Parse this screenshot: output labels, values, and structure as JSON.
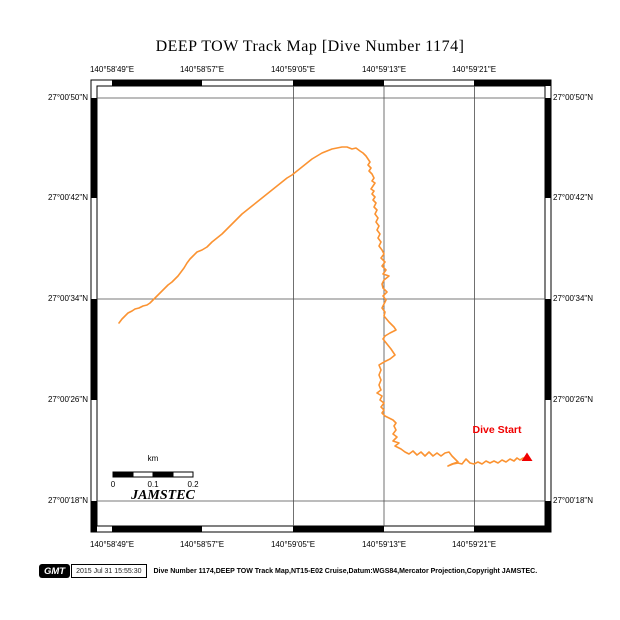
{
  "title": "DEEP TOW Track Map [Dive Number 1174]",
  "axes": {
    "lon_labels": [
      "140°58'49\"E",
      "140°58'57\"E",
      "140°59'05\"E",
      "140°59'13\"E",
      "140°59'21\"E"
    ],
    "lat_labels": [
      "27°00'50\"N",
      "27°00'42\"N",
      "27°00'34\"N",
      "27°00'26\"N",
      "27°00'18\"N"
    ]
  },
  "annotations": {
    "dive_start": "Dive Start",
    "watermark": "JAMSTEC"
  },
  "scalebar": {
    "unit": "km",
    "ticks": [
      "0",
      "0.1",
      "0.2"
    ]
  },
  "footer": {
    "logo": "GMT",
    "timestamp": "2015 Jul 31 15:55:30",
    "caption": "Dive Number 1174,DEEP TOW Track Map,NT15-E02 Cruise,Datum:WGS84,Mercator Projection,Copyright JAMSTEC."
  },
  "colors": {
    "track": "#FB9332",
    "start_marker": "#F00000",
    "grid": "#4D4D4D"
  },
  "track": {
    "points": [
      [
        119,
        323
      ],
      [
        122,
        319
      ],
      [
        125,
        316
      ],
      [
        128,
        313
      ],
      [
        132,
        311
      ],
      [
        135,
        309
      ],
      [
        139,
        308
      ],
      [
        143,
        306
      ],
      [
        147,
        305
      ],
      [
        150,
        303
      ],
      [
        153,
        300
      ],
      [
        156,
        297
      ],
      [
        159,
        294
      ],
      [
        162,
        291
      ],
      [
        165,
        288
      ],
      [
        168,
        285
      ],
      [
        172,
        282
      ],
      [
        175,
        279
      ],
      [
        178,
        276
      ],
      [
        181,
        272
      ],
      [
        184,
        268
      ],
      [
        187,
        263
      ],
      [
        190,
        259
      ],
      [
        193,
        256
      ],
      [
        197,
        252
      ],
      [
        202,
        250
      ],
      [
        207,
        247
      ],
      [
        212,
        242
      ],
      [
        217,
        238
      ],
      [
        222,
        234
      ],
      [
        227,
        229
      ],
      [
        232,
        224
      ],
      [
        237,
        219
      ],
      [
        242,
        214
      ],
      [
        247,
        210
      ],
      [
        252,
        206
      ],
      [
        257,
        202
      ],
      [
        262,
        198
      ],
      [
        267,
        194
      ],
      [
        272,
        190
      ],
      [
        277,
        186
      ],
      [
        282,
        182
      ],
      [
        287,
        178
      ],
      [
        292,
        175
      ],
      [
        297,
        171
      ],
      [
        302,
        167
      ],
      [
        307,
        163
      ],
      [
        312,
        159
      ],
      [
        317,
        156
      ],
      [
        322,
        153
      ],
      [
        327,
        151
      ],
      [
        332,
        149
      ],
      [
        337,
        148
      ],
      [
        342,
        147
      ],
      [
        347,
        147
      ],
      [
        352,
        149
      ],
      [
        356,
        148
      ],
      [
        360,
        151
      ],
      [
        363,
        153
      ],
      [
        366,
        156
      ],
      [
        368,
        159
      ],
      [
        370,
        162
      ],
      [
        368,
        165
      ],
      [
        371,
        168
      ],
      [
        369,
        171
      ],
      [
        372,
        174
      ],
      [
        374,
        178
      ],
      [
        372,
        181
      ],
      [
        375,
        183
      ],
      [
        373,
        186
      ],
      [
        371,
        189
      ],
      [
        374,
        191
      ],
      [
        372,
        194
      ],
      [
        375,
        197
      ],
      [
        373,
        200
      ],
      [
        376,
        203
      ],
      [
        374,
        207
      ],
      [
        377,
        210
      ],
      [
        375,
        214
      ],
      [
        378,
        218
      ],
      [
        376,
        222
      ],
      [
        379,
        226
      ],
      [
        377,
        230
      ],
      [
        380,
        234
      ],
      [
        378,
        238
      ],
      [
        381,
        242
      ],
      [
        379,
        246
      ],
      [
        382,
        250
      ],
      [
        384,
        254
      ],
      [
        381,
        258
      ],
      [
        385,
        262
      ],
      [
        382,
        266
      ],
      [
        386,
        270
      ],
      [
        383,
        274
      ],
      [
        389,
        276
      ],
      [
        384,
        280
      ],
      [
        382,
        284
      ],
      [
        383,
        288
      ],
      [
        387,
        292
      ],
      [
        383,
        296
      ],
      [
        386,
        300
      ],
      [
        384,
        304
      ],
      [
        382,
        308
      ],
      [
        385,
        312
      ],
      [
        384,
        316
      ],
      [
        389,
        322
      ],
      [
        394,
        327
      ],
      [
        396,
        330
      ],
      [
        390,
        333
      ],
      [
        385,
        336
      ],
      [
        383,
        339
      ],
      [
        387,
        344
      ],
      [
        391,
        349
      ],
      [
        395,
        355
      ],
      [
        390,
        359
      ],
      [
        384,
        362
      ],
      [
        379,
        365
      ],
      [
        381,
        370
      ],
      [
        379,
        375
      ],
      [
        381,
        380
      ],
      [
        379,
        385
      ],
      [
        381,
        390
      ],
      [
        377,
        393
      ],
      [
        382,
        396
      ],
      [
        380,
        400
      ],
      [
        384,
        403
      ],
      [
        381,
        407
      ],
      [
        384,
        410
      ],
      [
        382,
        413
      ],
      [
        385,
        416
      ],
      [
        389,
        418
      ],
      [
        393,
        420
      ],
      [
        396,
        423
      ],
      [
        394,
        426
      ],
      [
        396,
        430
      ],
      [
        393,
        434
      ],
      [
        397,
        437
      ],
      [
        393,
        441
      ],
      [
        399,
        443
      ],
      [
        395,
        446
      ],
      [
        401,
        449
      ],
      [
        405,
        452
      ],
      [
        409,
        454
      ],
      [
        413,
        451
      ],
      [
        417,
        455
      ],
      [
        421,
        452
      ],
      [
        425,
        456
      ],
      [
        429,
        452
      ],
      [
        433,
        456
      ],
      [
        437,
        453
      ],
      [
        441,
        456
      ],
      [
        445,
        453
      ],
      [
        449,
        452
      ],
      [
        452,
        456
      ],
      [
        455,
        459
      ],
      [
        458,
        462
      ],
      [
        452,
        464
      ],
      [
        448,
        466
      ],
      [
        453,
        464
      ],
      [
        458,
        463
      ],
      [
        462,
        464
      ],
      [
        466,
        459
      ],
      [
        470,
        463
      ],
      [
        474,
        464
      ],
      [
        478,
        462
      ],
      [
        482,
        464
      ],
      [
        486,
        461
      ],
      [
        490,
        463
      ],
      [
        494,
        461
      ],
      [
        498,
        463
      ],
      [
        502,
        460
      ],
      [
        506,
        462
      ],
      [
        510,
        459
      ],
      [
        514,
        461
      ],
      [
        517,
        458
      ],
      [
        520,
        460
      ],
      [
        523,
        458
      ],
      [
        526,
        458
      ]
    ]
  }
}
